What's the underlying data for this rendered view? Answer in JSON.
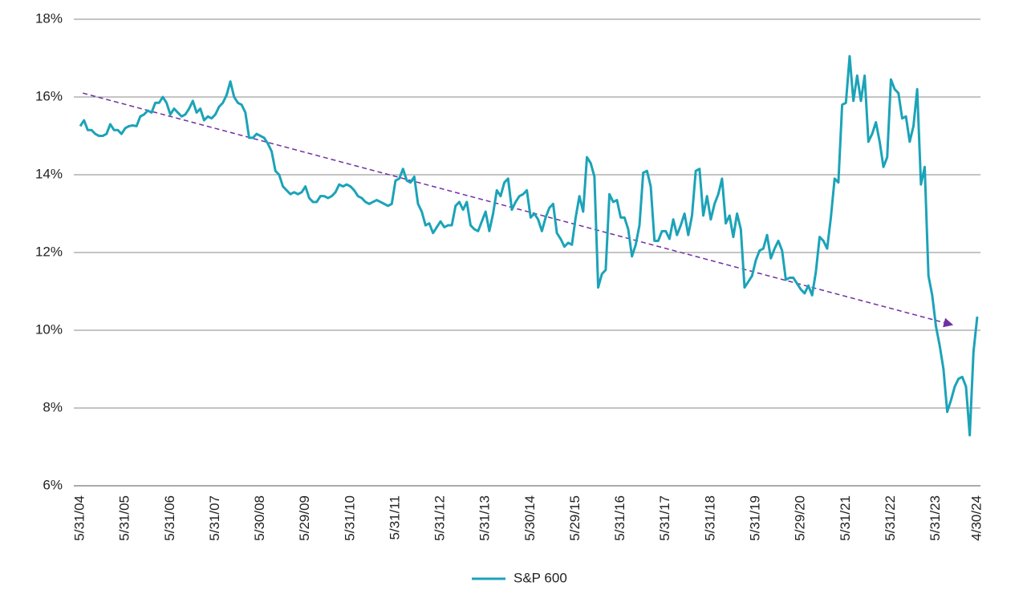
{
  "chart_data": {
    "type": "line",
    "categories": [
      "5/31/04",
      null,
      null,
      null,
      null,
      null,
      null,
      null,
      null,
      null,
      null,
      null,
      "5/31/05",
      null,
      null,
      null,
      null,
      null,
      null,
      null,
      null,
      null,
      null,
      null,
      "5/31/06",
      null,
      null,
      null,
      null,
      null,
      null,
      null,
      null,
      null,
      null,
      null,
      "5/31/07",
      null,
      null,
      null,
      null,
      null,
      null,
      null,
      null,
      null,
      null,
      null,
      "5/30/08",
      null,
      null,
      null,
      null,
      null,
      null,
      null,
      null,
      null,
      null,
      null,
      "5/29/09",
      null,
      null,
      null,
      null,
      null,
      null,
      null,
      null,
      null,
      null,
      null,
      "5/31/10",
      null,
      null,
      null,
      null,
      null,
      null,
      null,
      null,
      null,
      null,
      null,
      "5/31/11",
      null,
      null,
      null,
      null,
      null,
      null,
      null,
      null,
      null,
      null,
      null,
      "5/31/12",
      null,
      null,
      null,
      null,
      null,
      null,
      null,
      null,
      null,
      null,
      null,
      "5/31/13",
      null,
      null,
      null,
      null,
      null,
      null,
      null,
      null,
      null,
      null,
      null,
      "5/30/14",
      null,
      null,
      null,
      null,
      null,
      null,
      null,
      null,
      null,
      null,
      null,
      "5/29/15",
      null,
      null,
      null,
      null,
      null,
      null,
      null,
      null,
      null,
      null,
      null,
      "5/31/16",
      null,
      null,
      null,
      null,
      null,
      null,
      null,
      null,
      null,
      null,
      null,
      "5/31/17",
      null,
      null,
      null,
      null,
      null,
      null,
      null,
      null,
      null,
      null,
      null,
      "5/31/18",
      null,
      null,
      null,
      null,
      null,
      null,
      null,
      null,
      null,
      null,
      null,
      "5/31/19",
      null,
      null,
      null,
      null,
      null,
      null,
      null,
      null,
      null,
      null,
      null,
      "5/29/20",
      null,
      null,
      null,
      null,
      null,
      null,
      null,
      null,
      null,
      null,
      null,
      "5/31/21",
      null,
      null,
      null,
      null,
      null,
      null,
      null,
      null,
      null,
      null,
      null,
      "5/31/22",
      null,
      null,
      null,
      null,
      null,
      null,
      null,
      null,
      null,
      null,
      null,
      "5/31/23",
      null,
      null,
      null,
      null,
      null,
      null,
      null,
      null,
      null,
      null,
      "4/30/24"
    ],
    "series": [
      {
        "name": "S&P 600",
        "color": "#1ba3b8",
        "values": [
          15.25,
          15.4,
          15.15,
          15.15,
          15.05,
          15.0,
          15.0,
          15.05,
          15.3,
          15.15,
          15.15,
          15.05,
          15.2,
          15.25,
          15.27,
          15.25,
          15.5,
          15.55,
          15.65,
          15.6,
          15.85,
          15.85,
          16.0,
          15.85,
          15.55,
          15.7,
          15.6,
          15.5,
          15.55,
          15.7,
          15.9,
          15.6,
          15.7,
          15.4,
          15.5,
          15.45,
          15.55,
          15.75,
          15.85,
          16.05,
          16.4,
          16.0,
          15.85,
          15.8,
          15.6,
          14.95,
          14.95,
          15.05,
          15.0,
          14.95,
          14.8,
          14.6,
          14.1,
          14.0,
          13.7,
          13.6,
          13.5,
          13.55,
          13.5,
          13.55,
          13.7,
          13.4,
          13.3,
          13.3,
          13.45,
          13.45,
          13.4,
          13.45,
          13.55,
          13.75,
          13.7,
          13.75,
          13.7,
          13.6,
          13.45,
          13.4,
          13.3,
          13.25,
          13.3,
          13.35,
          13.3,
          13.25,
          13.2,
          13.25,
          13.85,
          13.9,
          14.15,
          13.85,
          13.8,
          13.95,
          13.25,
          13.05,
          12.7,
          12.75,
          12.5,
          12.65,
          12.8,
          12.65,
          12.7,
          12.7,
          13.2,
          13.3,
          13.1,
          13.3,
          12.7,
          12.6,
          12.55,
          12.8,
          13.05,
          12.55,
          13.0,
          13.6,
          13.45,
          13.8,
          13.9,
          13.1,
          13.3,
          13.45,
          13.5,
          13.6,
          12.9,
          13.0,
          12.85,
          12.55,
          12.9,
          13.15,
          13.25,
          12.5,
          12.35,
          12.15,
          12.25,
          12.2,
          12.9,
          13.45,
          13.05,
          14.45,
          14.3,
          13.95,
          11.1,
          11.45,
          11.55,
          13.5,
          13.3,
          13.35,
          12.9,
          12.9,
          12.6,
          11.9,
          12.2,
          12.7,
          14.05,
          14.1,
          13.7,
          12.3,
          12.3,
          12.55,
          12.55,
          12.35,
          12.85,
          12.45,
          12.7,
          13.0,
          12.45,
          12.95,
          14.1,
          14.15,
          12.95,
          13.45,
          12.85,
          13.25,
          13.5,
          13.9,
          12.75,
          12.95,
          12.4,
          13.0,
          12.6,
          11.1,
          11.25,
          11.4,
          11.8,
          12.05,
          12.1,
          12.45,
          11.85,
          12.1,
          12.3,
          12.05,
          11.3,
          11.35,
          11.35,
          11.2,
          11.05,
          10.95,
          11.15,
          10.9,
          11.5,
          12.4,
          12.3,
          12.1,
          12.9,
          13.9,
          13.8,
          15.8,
          15.85,
          17.05,
          15.9,
          16.55,
          15.9,
          16.55,
          14.85,
          15.05,
          15.35,
          14.85,
          14.2,
          14.45,
          16.45,
          16.2,
          16.1,
          15.45,
          15.5,
          14.85,
          15.25,
          16.2,
          13.75,
          14.2,
          11.4,
          10.9,
          10.1,
          9.6,
          9.0,
          7.9,
          8.2,
          8.55,
          8.75,
          8.8,
          8.55,
          7.3,
          9.45,
          10.35
        ]
      }
    ],
    "trend": {
      "color": "#7030a0",
      "values": [
        16.1,
        10.15
      ]
    },
    "ylim": [
      6,
      18
    ],
    "yticks": [
      {
        "value": 6,
        "label": "6%"
      },
      {
        "value": 8,
        "label": "8%"
      },
      {
        "value": 10,
        "label": "10%"
      },
      {
        "value": 12,
        "label": "12%"
      },
      {
        "value": 14,
        "label": "14%"
      },
      {
        "value": 16,
        "label": "16%"
      },
      {
        "value": 18,
        "label": "18%"
      }
    ],
    "grid": true,
    "legend": "bottom"
  }
}
